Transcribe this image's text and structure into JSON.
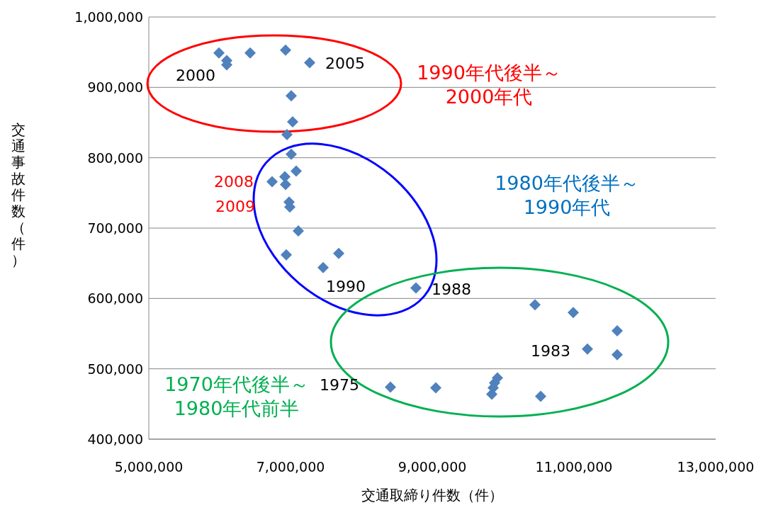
{
  "chart_data": {
    "type": "scatter",
    "xlabel": "交通取締り件数（件）",
    "ylabel": "交通事故件数（件）",
    "x": [
      5990000,
      6100000,
      6100000,
      6430000,
      6930000,
      7270000,
      7010000,
      7030000,
      6950000,
      7010000,
      7080000,
      6920000,
      6930000,
      6740000,
      6980000,
      6990000,
      7110000,
      6940000,
      7680000,
      7460000,
      8770000,
      10450000,
      10990000,
      11610000,
      11190000,
      11610000,
      9920000,
      9880000,
      9860000,
      9840000,
      10530000,
      9050000,
      8410000
    ],
    "series": [
      {
        "color": "#4f81bd",
        "values": [
          949000,
          938000,
          932000,
          949000,
          953000,
          935000,
          888000,
          851000,
          833000,
          805000,
          781000,
          773000,
          762000,
          766000,
          737000,
          730000,
          696000,
          662000,
          664000,
          644000,
          615000,
          591000,
          580000,
          554000,
          528000,
          520000,
          487000,
          480000,
          473000,
          464000,
          461000,
          473000,
          474000
        ]
      }
    ],
    "marker": "diamond",
    "grid": "y",
    "xlim": [
      5000000,
      13000000
    ],
    "xticks": [
      {
        "value": 5000000,
        "label": "5,000,000"
      },
      {
        "value": 7000000,
        "label": "7,000,000"
      },
      {
        "value": 9000000,
        "label": "9,000,000"
      },
      {
        "value": 11000000,
        "label": "11,000,000"
      },
      {
        "value": 13000000,
        "label": "13,000,000"
      }
    ],
    "ylim": [
      400000,
      1000000
    ],
    "yticks": [
      {
        "value": 400000,
        "label": "400,000"
      },
      {
        "value": 500000,
        "label": "500,000"
      },
      {
        "value": 600000,
        "label": "600,000"
      },
      {
        "value": 700000,
        "label": "700,000"
      },
      {
        "value": 800000,
        "label": "800,000"
      },
      {
        "value": 900000,
        "label": "900,000"
      },
      {
        "value": 1000000,
        "label": "1,000,000"
      }
    ],
    "annotations": [
      {
        "text": "2000",
        "x": 6100000,
        "y": 932000
      },
      {
        "text": "2005",
        "x": 7270000,
        "y": 935000
      },
      {
        "text": "2008",
        "x": 6740000,
        "y": 766000
      },
      {
        "text": "2009",
        "x": 6980000,
        "y": 737000
      },
      {
        "text": "1990",
        "x": 7460000,
        "y": 644000
      },
      {
        "text": "1988",
        "x": 8770000,
        "y": 615000
      },
      {
        "text": "1983",
        "x": 11190000,
        "y": 528000
      },
      {
        "text": "1975",
        "x": 8410000,
        "y": 474000
      },
      "1990年代後半～\n2000年代",
      "1980年代後半～\n1990年代",
      "1970年代後半～\n1980年代前半"
    ]
  }
}
